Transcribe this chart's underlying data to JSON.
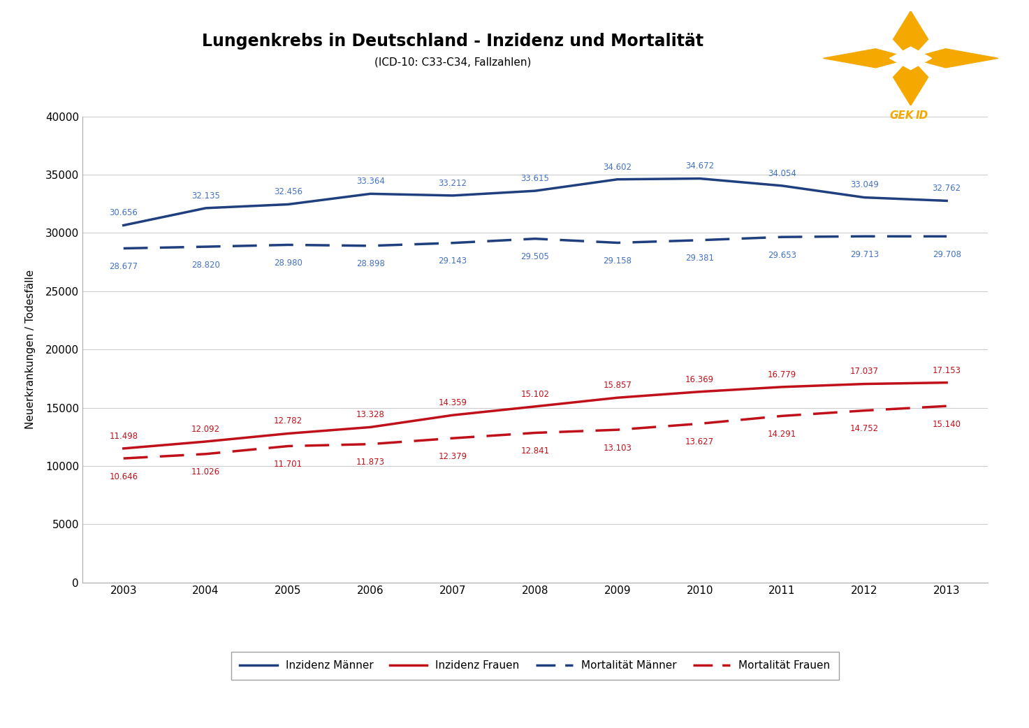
{
  "title": "Lungenkrebs in Deutschland - Inzidenz und Mortalität",
  "subtitle": "(ICD-10: C33-C34, Fallzahlen)",
  "years": [
    2003,
    2004,
    2005,
    2006,
    2007,
    2008,
    2009,
    2010,
    2011,
    2012,
    2013
  ],
  "inzidenz_maenner": [
    30656,
    32135,
    32456,
    33364,
    33212,
    33615,
    34602,
    34672,
    34054,
    33049,
    32762
  ],
  "inzidenz_frauen": [
    11498,
    12092,
    12782,
    13328,
    14359,
    15102,
    15857,
    16369,
    16779,
    17037,
    17153
  ],
  "mortalitaet_maenner": [
    28677,
    28820,
    28980,
    28898,
    29143,
    29505,
    29158,
    29381,
    29653,
    29713,
    29708
  ],
  "mortalitaet_frauen": [
    10646,
    11026,
    11701,
    11873,
    12379,
    12841,
    13103,
    13627,
    14291,
    14752,
    15140
  ],
  "color_blau": "#1F3F7F",
  "color_rot": "#C0101A",
  "ylabel": "Neuerkrankungen / Todesfälle",
  "ylim": [
    0,
    40000
  ],
  "yticks": [
    0,
    5000,
    10000,
    15000,
    20000,
    25000,
    30000,
    35000,
    40000
  ],
  "ytick_labels": [
    "0",
    "5000",
    "10000",
    "15000",
    "20000",
    "25000",
    "30000",
    "35000",
    "40000"
  ],
  "legend_labels": [
    "Inzidenz Männer",
    "Inzidenz Frauen",
    "Mortalität Männer",
    "Mortalität Frauen"
  ],
  "bg_color": "#FFFFFF",
  "plot_bg_color": "#FFFFFF",
  "grid_color": "#CCCCCC",
  "label_color_blue": "#4472C4",
  "label_color_red": "#C0101A",
  "orange": "#F5A800"
}
